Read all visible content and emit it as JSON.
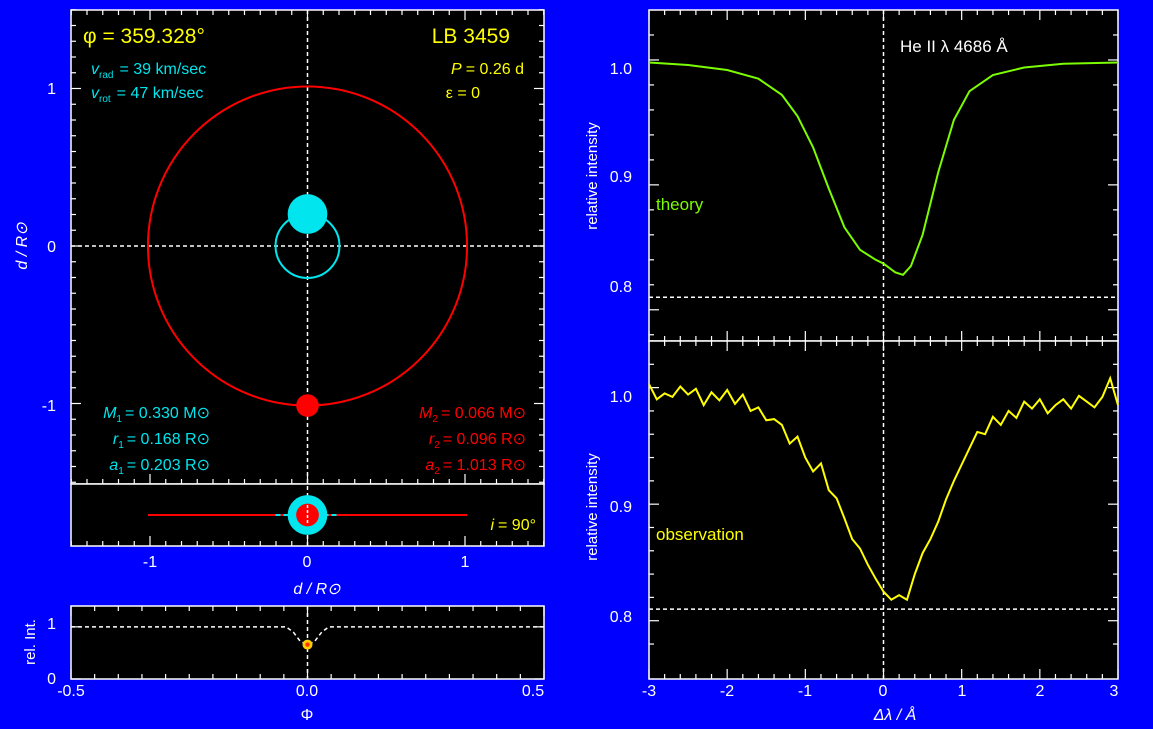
{
  "colors": {
    "background": "#0000ff",
    "panel": "#000000",
    "frame": "#ffffff",
    "primary": "#00e5ee",
    "secondary": "#ff0000",
    "theory_curve": "#7cfc00",
    "observation_curve": "#ffff00",
    "label_yellow": "#ffff00",
    "text_white": "#ffffff"
  },
  "orbit_panel": {
    "phase_label": "φ = 359.328°",
    "star_name": "LB 3459",
    "vrad_label": "rad",
    "vrad_value": "= 39 km/sec",
    "vrot_label": "rot",
    "vrot_value": "= 47 km/sec",
    "period_value": "= 0.26 d",
    "eccentricity_label": "ε = 0",
    "ylabel": "d / R⊙",
    "xlabel": "d / R⊙",
    "inclination_value": "= 90°",
    "xticks": [
      "-1",
      "0",
      "1"
    ],
    "yticks": [
      "1",
      "0",
      "-1"
    ],
    "primary_star": {
      "mass_label": "1",
      "mass_value": "= 0.330 M⊙",
      "radius_label": "1",
      "radius_value": "= 0.168 R⊙",
      "axis_label": "1",
      "axis_value": "= 0.203 R⊙"
    },
    "secondary_star": {
      "mass_label": "2",
      "mass_value": "= 0.066 M⊙",
      "radius_label": "2",
      "radius_value": "= 0.096 R⊙",
      "axis_label": "2",
      "axis_value": "= 1.013 R⊙"
    }
  },
  "light_curve": {
    "ylabel": "rel. Int.",
    "xlabel": "Φ",
    "xticks": [
      "-0.5",
      "0.0",
      "0.5"
    ],
    "yticks": [
      "1",
      "0"
    ]
  },
  "spectrum_panel": {
    "line_label": "He II  λ 4686 Å",
    "ylabel_top": "relative intensity",
    "ylabel_bottom": "relative intensity",
    "xlabel": "Δλ / Å",
    "theory_label": "theory",
    "observation_label": "observation",
    "xticks": [
      "-3",
      "-2",
      "-1",
      "0",
      "1",
      "2",
      "3"
    ],
    "yticks_top": [
      "1.0",
      "0.9",
      "0.8"
    ],
    "yticks_bottom": [
      "1.0",
      "0.9",
      "0.8"
    ]
  },
  "chart_data": [
    {
      "type": "scatter",
      "name": "orbit",
      "xlim": [
        -1.5,
        1.5
      ],
      "ylim": [
        -1.5,
        1.5
      ],
      "inclination_deg": 90,
      "primary": {
        "a": 0.203,
        "r": 0.168,
        "x": 0.0,
        "y": 0.203
      },
      "secondary": {
        "a": 1.013,
        "r": 0.096,
        "x": 0.0,
        "y": -1.013
      }
    },
    {
      "type": "line",
      "name": "light_curve",
      "xlim": [
        -0.5,
        0.5
      ],
      "ylim": [
        0,
        1.4
      ],
      "x": [
        -0.5,
        -0.045,
        -0.03,
        -0.015,
        0.0,
        0.015,
        0.03,
        0.045,
        0.5
      ],
      "y": [
        1.0,
        1.0,
        0.9,
        0.72,
        0.66,
        0.72,
        0.9,
        1.0,
        1.0
      ],
      "current_point": {
        "x": 0.0,
        "y": 0.66
      }
    },
    {
      "type": "line",
      "name": "theory_spectrum",
      "xlim": [
        -3,
        3
      ],
      "ylim": [
        0.775,
        1.04
      ],
      "continuum_reference": 0.81,
      "x": [
        -3.0,
        -2.5,
        -2.0,
        -1.6,
        -1.3,
        -1.1,
        -0.9,
        -0.7,
        -0.5,
        -0.3,
        -0.1,
        0.0,
        0.15,
        0.25,
        0.35,
        0.5,
        0.7,
        0.9,
        1.1,
        1.4,
        1.8,
        2.3,
        3.0
      ],
      "y": [
        0.998,
        0.996,
        0.992,
        0.985,
        0.972,
        0.955,
        0.93,
        0.897,
        0.866,
        0.848,
        0.84,
        0.837,
        0.83,
        0.828,
        0.835,
        0.86,
        0.91,
        0.952,
        0.975,
        0.988,
        0.994,
        0.997,
        0.998
      ]
    },
    {
      "type": "line",
      "name": "observed_spectrum",
      "xlim": [
        -3,
        3
      ],
      "ylim": [
        0.75,
        1.04
      ],
      "continuum_reference": 0.81,
      "x": [
        -3.0,
        -2.9,
        -2.8,
        -2.7,
        -2.6,
        -2.5,
        -2.4,
        -2.3,
        -2.2,
        -2.1,
        -2.0,
        -1.9,
        -1.8,
        -1.7,
        -1.6,
        -1.5,
        -1.4,
        -1.3,
        -1.2,
        -1.1,
        -1.0,
        -0.9,
        -0.8,
        -0.7,
        -0.6,
        -0.5,
        -0.4,
        -0.3,
        -0.2,
        -0.1,
        0.0,
        0.1,
        0.2,
        0.3,
        0.4,
        0.5,
        0.6,
        0.7,
        0.8,
        0.9,
        1.0,
        1.1,
        1.2,
        1.3,
        1.4,
        1.5,
        1.6,
        1.7,
        1.8,
        1.9,
        2.0,
        2.1,
        2.2,
        2.3,
        2.4,
        2.5,
        2.6,
        2.7,
        2.8,
        2.9,
        3.0
      ],
      "y": [
        1.003,
        0.99,
        0.995,
        0.992,
        1.001,
        0.994,
        0.999,
        0.985,
        0.996,
        0.989,
        0.998,
        0.986,
        0.994,
        0.98,
        0.983,
        0.972,
        0.973,
        0.968,
        0.952,
        0.958,
        0.94,
        0.928,
        0.935,
        0.912,
        0.905,
        0.888,
        0.87,
        0.862,
        0.848,
        0.836,
        0.825,
        0.818,
        0.822,
        0.818,
        0.84,
        0.858,
        0.87,
        0.885,
        0.904,
        0.92,
        0.934,
        0.948,
        0.962,
        0.96,
        0.975,
        0.968,
        0.98,
        0.974,
        0.988,
        0.982,
        0.99,
        0.978,
        0.985,
        0.99,
        0.982,
        0.993,
        0.988,
        0.983,
        0.992,
        1.008,
        0.985
      ]
    }
  ]
}
